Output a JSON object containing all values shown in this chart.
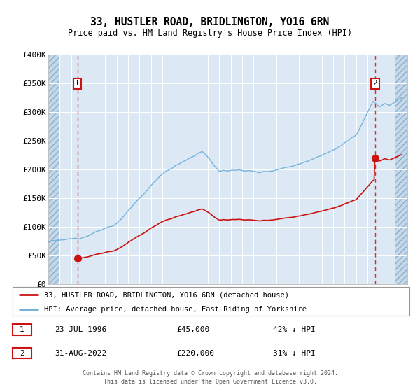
{
  "title": "33, HUSTLER ROAD, BRIDLINGTON, YO16 6RN",
  "subtitle": "Price paid vs. HM Land Registry's House Price Index (HPI)",
  "hpi_label": "HPI: Average price, detached house, East Riding of Yorkshire",
  "property_label": "33, HUSTLER ROAD, BRIDLINGTON, YO16 6RN (detached house)",
  "sale1_date": "23-JUL-1996",
  "sale1_price": 45000,
  "sale1_note": "42% ↓ HPI",
  "sale2_date": "31-AUG-2022",
  "sale2_price": 220000,
  "sale2_note": "31% ↓ HPI",
  "footer": "Contains HM Land Registry data © Crown copyright and database right 2024.\nThis data is licensed under the Open Government Licence v3.0.",
  "hpi_color": "#6baed6",
  "property_color": "#cc1111",
  "background_color": "#dce9f5",
  "ylim": [
    0,
    400000
  ],
  "yticks": [
    0,
    50000,
    100000,
    150000,
    200000,
    250000,
    300000,
    350000,
    400000
  ],
  "sale1_x": 1996.55,
  "sale2_x": 2022.66,
  "xlim_left": 1994.0,
  "xlim_right": 2025.5,
  "x_hatch_left_end": 1994.92,
  "x_hatch_right_start": 2024.42
}
